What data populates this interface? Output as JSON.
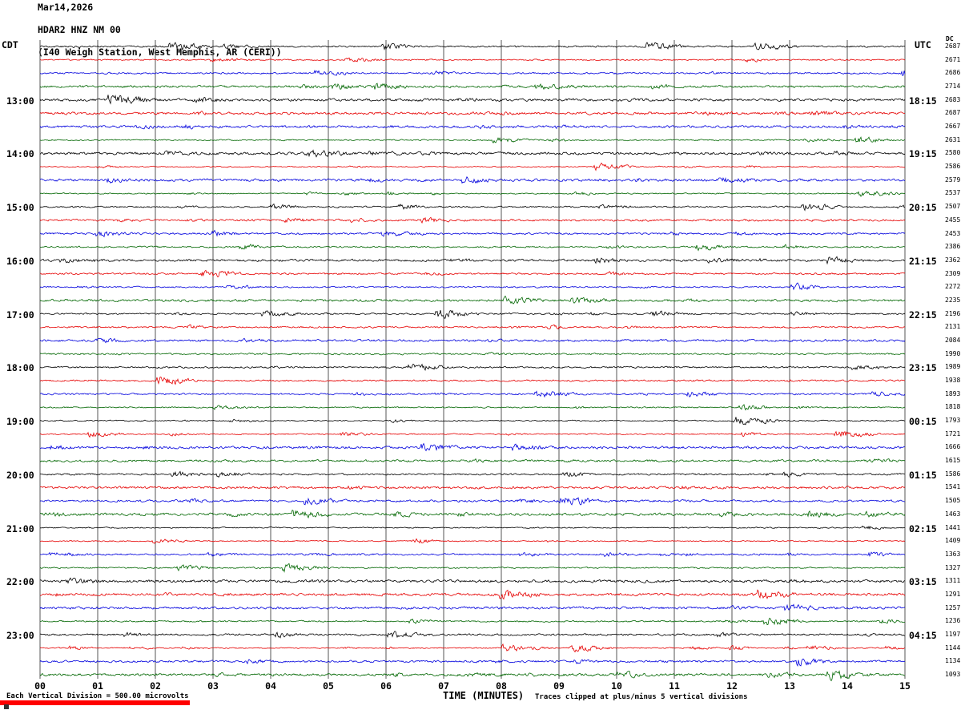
{
  "header": {
    "date_line": "Mar14,2026",
    "station_line": "HDAR2 HNZ NM 00",
    "location_line": "(I40 Weigh Station, West Memphis, AR (CERI))"
  },
  "axis": {
    "left_tz_label": "CDT",
    "right_tz_label": "UTC",
    "dc_column_label": "DC",
    "x_axis_label": "TIME (MINUTES)",
    "x_tick_labels": [
      "00",
      "01",
      "02",
      "03",
      "04",
      "05",
      "06",
      "07",
      "08",
      "09",
      "10",
      "11",
      "12",
      "13",
      "14",
      "15"
    ]
  },
  "footer": {
    "scale_note": "Each Vertical Division =  500.00 microvolts",
    "clip_note": "Traces clipped at plus/minus 5 vertical divisions"
  },
  "chart_data": {
    "type": "line",
    "title": "HDAR2 HNZ NM 00 helicorder seismogram",
    "xlabel": "TIME (MINUTES)",
    "ylabel": "microvolts",
    "x_range_minutes": [
      0,
      15
    ],
    "minutes_per_trace_line": 15,
    "vertical_division_microvolts": 500.0,
    "clip_plus_minus_divisions": 5,
    "grid": "vertical minute gridlines",
    "trace_color_cycle": [
      "#000000",
      "#e60000",
      "#0000dd",
      "#006600"
    ],
    "rows": [
      {
        "cdt": "",
        "utc": "",
        "dc": 2687
      },
      {
        "cdt": "",
        "utc": "",
        "dc": 2671
      },
      {
        "cdt": "",
        "utc": "",
        "dc": 2686
      },
      {
        "cdt": "",
        "utc": "",
        "dc": 2714
      },
      {
        "cdt": "13:00",
        "utc": "18:15",
        "dc": 2683
      },
      {
        "cdt": "",
        "utc": "",
        "dc": 2687
      },
      {
        "cdt": "",
        "utc": "",
        "dc": 2667
      },
      {
        "cdt": "",
        "utc": "",
        "dc": 2631
      },
      {
        "cdt": "14:00",
        "utc": "19:15",
        "dc": 2580
      },
      {
        "cdt": "",
        "utc": "",
        "dc": 2586
      },
      {
        "cdt": "",
        "utc": "",
        "dc": 2579
      },
      {
        "cdt": "",
        "utc": "",
        "dc": 2537
      },
      {
        "cdt": "15:00",
        "utc": "20:15",
        "dc": 2507
      },
      {
        "cdt": "",
        "utc": "",
        "dc": 2455
      },
      {
        "cdt": "",
        "utc": "",
        "dc": 2453
      },
      {
        "cdt": "",
        "utc": "",
        "dc": 2386
      },
      {
        "cdt": "16:00",
        "utc": "21:15",
        "dc": 2362
      },
      {
        "cdt": "",
        "utc": "",
        "dc": 2309
      },
      {
        "cdt": "",
        "utc": "",
        "dc": 2272
      },
      {
        "cdt": "",
        "utc": "",
        "dc": 2235
      },
      {
        "cdt": "17:00",
        "utc": "22:15",
        "dc": 2196
      },
      {
        "cdt": "",
        "utc": "",
        "dc": 2131
      },
      {
        "cdt": "",
        "utc": "",
        "dc": 2084
      },
      {
        "cdt": "",
        "utc": "",
        "dc": 1990
      },
      {
        "cdt": "18:00",
        "utc": "23:15",
        "dc": 1989
      },
      {
        "cdt": "",
        "utc": "",
        "dc": 1938
      },
      {
        "cdt": "",
        "utc": "",
        "dc": 1893
      },
      {
        "cdt": "",
        "utc": "",
        "dc": 1818
      },
      {
        "cdt": "19:00",
        "utc": "00:15",
        "dc": 1793
      },
      {
        "cdt": "",
        "utc": "",
        "dc": 1721
      },
      {
        "cdt": "",
        "utc": "",
        "dc": 1666
      },
      {
        "cdt": "",
        "utc": "",
        "dc": 1615
      },
      {
        "cdt": "20:00",
        "utc": "01:15",
        "dc": 1586
      },
      {
        "cdt": "",
        "utc": "",
        "dc": 1541
      },
      {
        "cdt": "",
        "utc": "",
        "dc": 1505
      },
      {
        "cdt": "",
        "utc": "",
        "dc": 1463
      },
      {
        "cdt": "21:00",
        "utc": "02:15",
        "dc": 1441
      },
      {
        "cdt": "",
        "utc": "",
        "dc": 1409
      },
      {
        "cdt": "",
        "utc": "",
        "dc": 1363
      },
      {
        "cdt": "",
        "utc": "",
        "dc": 1327
      },
      {
        "cdt": "22:00",
        "utc": "03:15",
        "dc": 1311
      },
      {
        "cdt": "",
        "utc": "",
        "dc": 1291
      },
      {
        "cdt": "",
        "utc": "",
        "dc": 1257
      },
      {
        "cdt": "",
        "utc": "",
        "dc": 1236
      },
      {
        "cdt": "23:00",
        "utc": "04:15",
        "dc": 1197
      },
      {
        "cdt": "",
        "utc": "",
        "dc": 1144
      },
      {
        "cdt": "",
        "utc": "",
        "dc": 1134
      },
      {
        "cdt": "",
        "utc": "",
        "dc": 1093
      }
    ]
  }
}
